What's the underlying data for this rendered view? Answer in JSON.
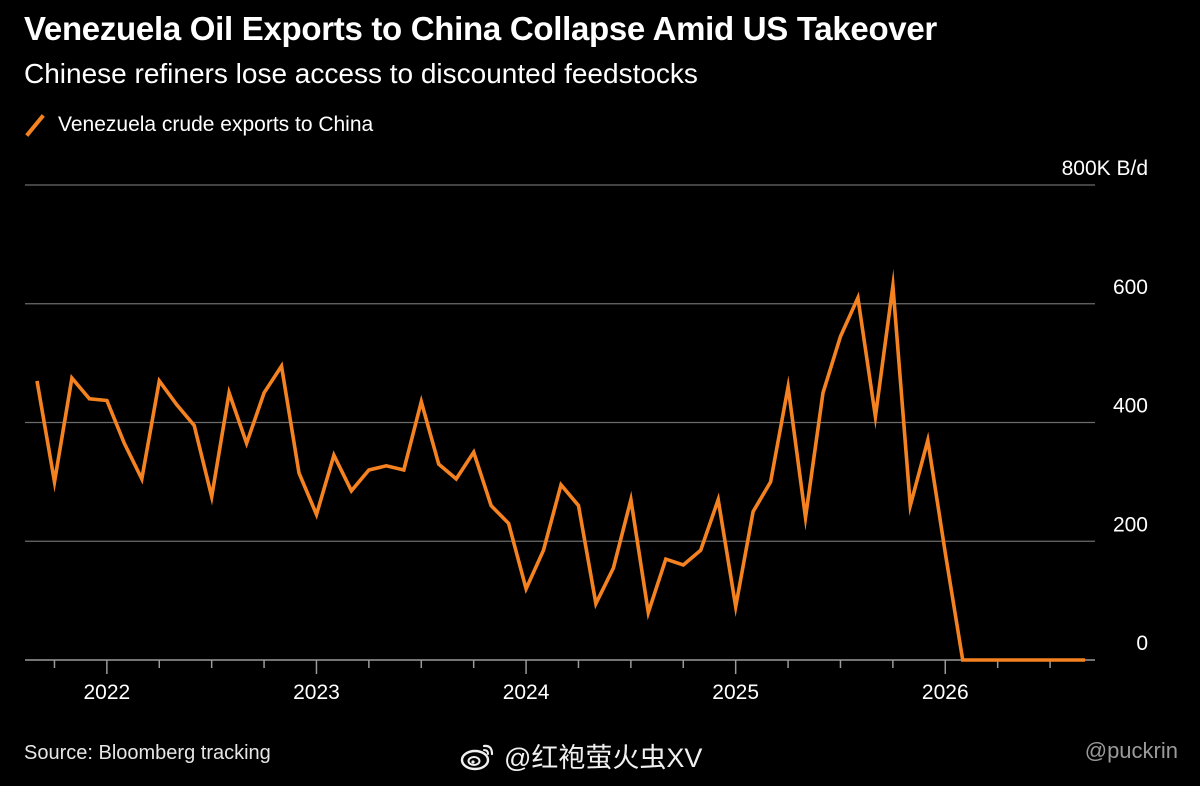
{
  "title": "Venezuela Oil Exports to China Collapse Amid US Takeover",
  "subtitle": "Chinese refiners lose access to discounted feedstocks",
  "legend_label": "Venezuela crude exports to China",
  "source": "Source: Bloomberg tracking",
  "watermark": "@红袍萤火虫XV",
  "watermark_icon": "weibo-icon",
  "handle": "@puckrin",
  "colors": {
    "background": "#000000",
    "line": "#f58220",
    "grid": "#6b6b6b",
    "text": "#ffffff"
  },
  "chart_data": {
    "type": "line",
    "title": "Venezuela Oil Exports to China Collapse Amid US Takeover",
    "subtitle": "Chinese refiners lose access to discounted feedstocks",
    "unit_label": "800K B/d",
    "ylim": [
      0,
      800
    ],
    "yticks": [
      0,
      200,
      400,
      600,
      800
    ],
    "ytick_labels": [
      "0",
      "200",
      "400",
      "600",
      "800K B/d"
    ],
    "xlim": [
      "2021-09",
      "2026-09"
    ],
    "xticks": [
      "2022",
      "2023",
      "2024",
      "2025",
      "2026"
    ],
    "grid": true,
    "legend_position": "top-left",
    "series": [
      {
        "name": "Venezuela crude exports to China",
        "x": [
          "2021-09",
          "2021-10",
          "2021-11",
          "2021-12",
          "2022-01",
          "2022-02",
          "2022-03",
          "2022-04",
          "2022-05",
          "2022-06",
          "2022-07",
          "2022-08",
          "2022-09",
          "2022-10",
          "2022-11",
          "2022-12",
          "2023-01",
          "2023-02",
          "2023-03",
          "2023-04",
          "2023-05",
          "2023-06",
          "2023-07",
          "2023-08",
          "2023-09",
          "2023-10",
          "2023-11",
          "2023-12",
          "2024-01",
          "2024-02",
          "2024-03",
          "2024-04",
          "2024-05",
          "2024-06",
          "2024-07",
          "2024-08",
          "2024-09",
          "2024-10",
          "2024-11",
          "2024-12",
          "2025-01",
          "2025-02",
          "2025-03",
          "2025-04",
          "2025-05",
          "2025-06",
          "2025-07",
          "2025-08",
          "2025-09",
          "2025-10",
          "2025-11",
          "2025-12",
          "2026-01",
          "2026-02",
          "2026-03",
          "2026-04",
          "2026-05",
          "2026-06",
          "2026-07",
          "2026-08",
          "2026-09"
        ],
        "values": [
          470,
          300,
          475,
          440,
          437,
          365,
          305,
          470,
          430,
          395,
          275,
          450,
          365,
          450,
          495,
          315,
          245,
          345,
          285,
          320,
          327,
          320,
          435,
          330,
          305,
          350,
          260,
          230,
          120,
          185,
          295,
          260,
          95,
          155,
          270,
          80,
          170,
          160,
          185,
          270,
          90,
          250,
          300,
          460,
          240,
          450,
          545,
          610,
          410,
          630,
          260,
          370,
          180,
          0,
          0,
          0,
          0,
          0,
          0,
          0,
          0
        ]
      }
    ]
  }
}
